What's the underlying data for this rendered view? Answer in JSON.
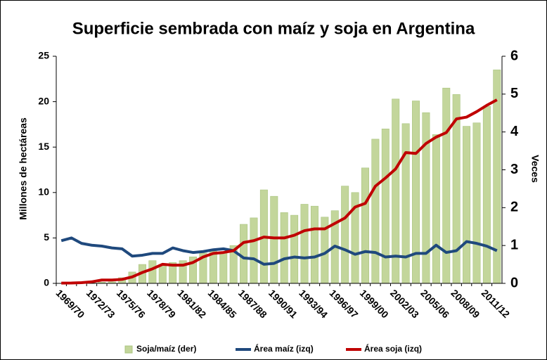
{
  "chart_data": {
    "type": "bar_line",
    "title": "Superficie sembrada con maíz y soja en Argentina",
    "ylabel": "Millones de hectáreas",
    "y2label": "Veces",
    "categories": [
      "1969/70",
      null,
      null,
      "1972/73",
      null,
      null,
      "1975/76",
      null,
      null,
      "1978/79",
      null,
      null,
      "1981/82",
      null,
      null,
      "1984/85",
      null,
      null,
      "1987/88",
      null,
      null,
      "1990/91",
      null,
      null,
      "1993/94",
      null,
      null,
      "1996/97",
      null,
      null,
      "1999/00",
      null,
      null,
      "2002/03",
      null,
      null,
      "2005/06",
      null,
      null,
      "2008/09",
      null,
      null,
      "2011/12",
      null
    ],
    "series": [
      {
        "name": "Soja/maíz (der)",
        "type": "bar",
        "axis": "y2",
        "color": "#c3d69b",
        "values": [
          0.0,
          0.0,
          0.01,
          0.02,
          0.03,
          0.04,
          0.15,
          0.3,
          0.5,
          0.6,
          0.5,
          0.55,
          0.6,
          0.7,
          0.8,
          0.85,
          0.84,
          1.0,
          1.56,
          1.73,
          2.47,
          2.3,
          1.87,
          1.8,
          2.09,
          2.04,
          1.75,
          1.92,
          2.57,
          2.4,
          3.05,
          3.81,
          4.08,
          4.87,
          4.22,
          4.82,
          4.51,
          3.93,
          5.16,
          4.99,
          4.15,
          4.24,
          4.68,
          5.64
        ]
      },
      {
        "name": "Área maíz (izq)",
        "type": "line",
        "color": "#1f497d",
        "values": [
          4.7,
          5.0,
          4.4,
          4.2,
          4.1,
          3.9,
          3.8,
          3.0,
          3.1,
          3.3,
          3.3,
          3.9,
          3.6,
          3.4,
          3.5,
          3.7,
          3.8,
          3.6,
          2.8,
          2.7,
          2.1,
          2.2,
          2.7,
          2.9,
          2.8,
          2.9,
          3.3,
          4.1,
          3.7,
          3.2,
          3.5,
          3.4,
          2.9,
          3.0,
          2.9,
          3.3,
          3.3,
          4.2,
          3.4,
          3.6,
          4.6,
          4.4,
          4.1,
          3.6
        ]
      },
      {
        "name": "Área soja (izq)",
        "type": "line",
        "color": "#c00000",
        "values": [
          0.03,
          0.04,
          0.08,
          0.17,
          0.37,
          0.37,
          0.44,
          0.71,
          1.2,
          1.6,
          2.1,
          2.0,
          2.0,
          2.3,
          2.9,
          3.3,
          3.4,
          3.6,
          4.5,
          4.7,
          5.1,
          5.0,
          5.0,
          5.3,
          5.8,
          6.0,
          6.0,
          6.6,
          7.2,
          8.4,
          8.8,
          10.7,
          11.6,
          12.6,
          14.4,
          14.3,
          15.4,
          16.1,
          16.6,
          18.1,
          18.3,
          18.9,
          19.6,
          20.2
        ]
      }
    ],
    "ylim": [
      0,
      25
    ],
    "yticks": [
      0,
      5,
      10,
      15,
      20,
      25
    ],
    "y2lim": [
      0,
      6
    ],
    "y2ticks": [
      0,
      1,
      2,
      3,
      4,
      5,
      6
    ],
    "legend": "bottom"
  }
}
